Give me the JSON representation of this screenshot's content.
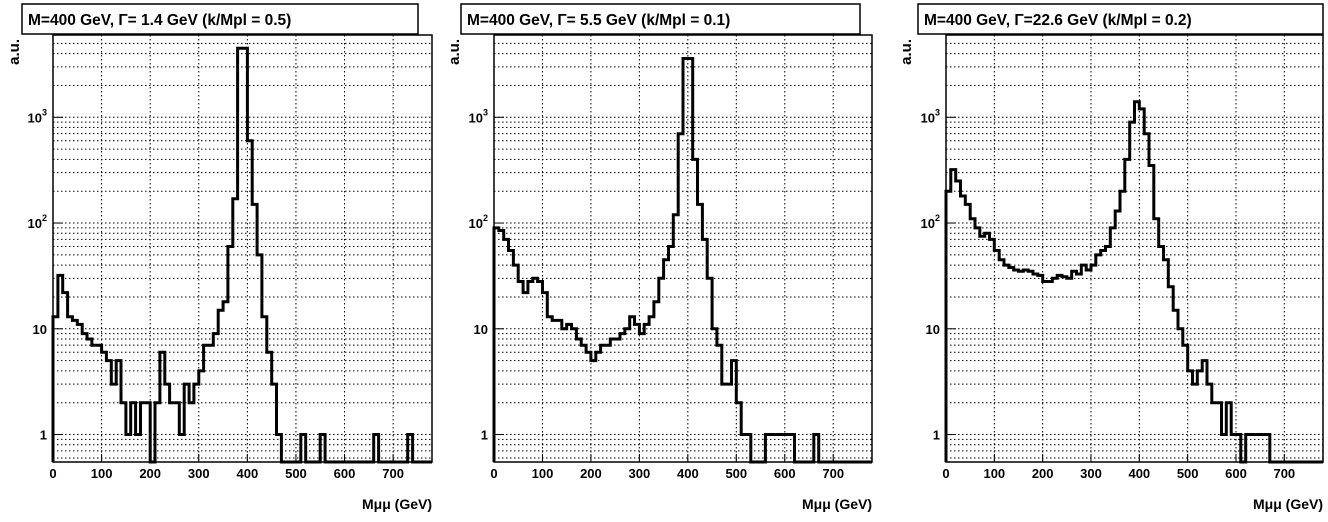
{
  "chart_data": [
    {
      "type": "histogram",
      "title": "M=400 GeV,   Γ= 1.4 GeV (k/Mpl = 0.5)",
      "xlabel": "Mμμ (GeV)",
      "ylabel": "a.u.",
      "xlim": [
        0,
        780
      ],
      "ylim": [
        0.55,
        6000
      ],
      "yscale": "log",
      "grid": true,
      "xticks": [
        "0",
        "100",
        "200",
        "300",
        "400",
        "500",
        "600",
        "700"
      ],
      "yticks": [
        "1",
        "10",
        "10³",
        "10²"
      ],
      "bin_width": 10,
      "values": [
        13,
        32,
        22,
        13,
        12,
        11,
        9,
        8,
        7,
        7,
        6,
        5,
        3,
        5,
        2,
        1,
        2,
        1,
        2,
        2,
        0,
        2,
        6,
        3,
        2,
        2,
        1,
        3,
        2,
        3,
        4,
        7,
        7,
        9,
        15,
        18,
        60,
        170,
        4500,
        4500,
        600,
        150,
        50,
        13,
        6,
        3,
        1,
        0,
        0,
        0,
        0,
        1,
        0,
        0,
        0,
        1,
        0,
        0,
        0,
        0,
        0,
        0,
        0,
        0,
        0,
        0,
        1,
        0,
        0,
        0,
        0,
        0,
        0,
        1,
        0,
        0,
        0,
        0
      ]
    },
    {
      "type": "histogram",
      "title": "M=400 GeV,   Γ= 5.5 GeV (k/Mpl = 0.1)",
      "xlabel": "Mμμ (GeV)",
      "ylabel": "a.u.",
      "xlim": [
        0,
        780
      ],
      "ylim": [
        0.55,
        6000
      ],
      "yscale": "log",
      "grid": true,
      "xticks": [
        "0",
        "100",
        "200",
        "300",
        "400",
        "500",
        "600",
        "700"
      ],
      "yticks": [
        "1",
        "10",
        "10³",
        "10²"
      ],
      "bin_width": 10,
      "values": [
        90,
        85,
        70,
        55,
        40,
        28,
        22,
        28,
        30,
        28,
        22,
        13,
        12,
        12,
        10,
        11,
        10,
        8,
        7,
        6,
        5,
        6,
        7,
        7,
        8,
        8,
        9,
        10,
        13,
        11,
        9,
        11,
        13,
        18,
        30,
        45,
        60,
        120,
        700,
        3600,
        3600,
        400,
        150,
        70,
        30,
        10,
        7,
        3,
        3,
        5,
        2,
        1,
        1,
        0,
        0,
        0,
        1,
        1,
        1,
        1,
        1,
        1,
        0,
        0,
        0,
        0,
        1,
        0,
        0,
        0,
        0,
        0,
        0,
        0,
        0,
        0,
        0,
        0
      ]
    },
    {
      "type": "histogram",
      "title": "M=400 GeV,   Γ=22.6 GeV (k/Mpl = 0.2)",
      "xlabel": "Mμμ (GeV)",
      "ylabel": "a.u.",
      "xlim": [
        0,
        780
      ],
      "ylim": [
        0.55,
        6000
      ],
      "yscale": "log",
      "grid": true,
      "xticks": [
        "0",
        "100",
        "200",
        "300",
        "400",
        "500",
        "600",
        "700"
      ],
      "yticks": [
        "1",
        "10",
        "10³",
        "10²"
      ],
      "bin_width": 10,
      "values": [
        200,
        320,
        250,
        180,
        150,
        110,
        90,
        75,
        80,
        70,
        55,
        45,
        40,
        38,
        36,
        35,
        36,
        35,
        33,
        32,
        28,
        28,
        30,
        32,
        31,
        30,
        35,
        33,
        40,
        36,
        40,
        50,
        55,
        60,
        90,
        130,
        200,
        400,
        900,
        1400,
        1200,
        700,
        350,
        110,
        60,
        45,
        25,
        15,
        10,
        7,
        4,
        3,
        4,
        5,
        3,
        2,
        2,
        1,
        2,
        1,
        1,
        0,
        1,
        1,
        1,
        1,
        1,
        0,
        0,
        0,
        0,
        0,
        0,
        0,
        0,
        0,
        0,
        0
      ]
    }
  ]
}
